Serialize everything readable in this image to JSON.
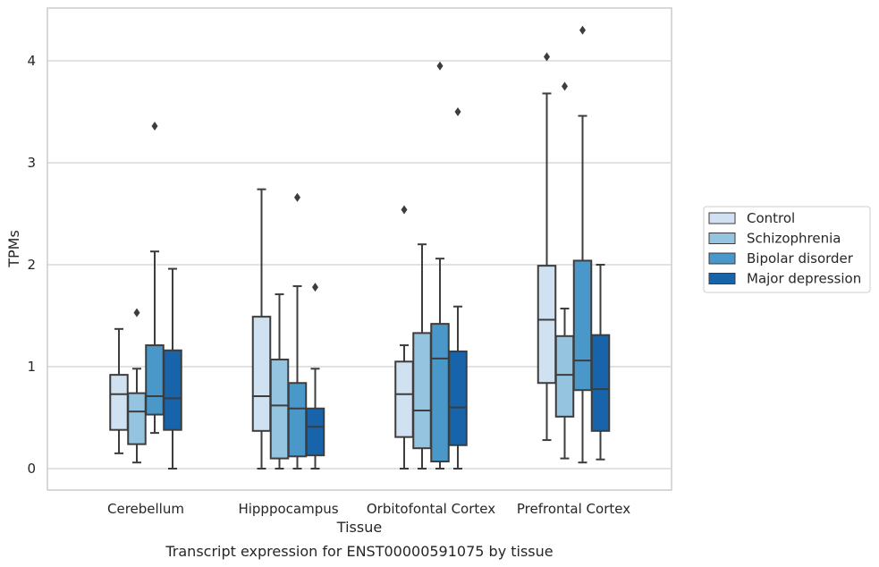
{
  "chart_data": {
    "type": "box",
    "title": "",
    "caption": "Transcript expression for ENST00000591075 by tissue",
    "xlabel": "Tissue",
    "ylabel": "TPMs",
    "ylim": [
      -0.2,
      4.52
    ],
    "yticks": [
      0,
      1,
      2,
      3,
      4
    ],
    "grid": "horizontal",
    "legend_position": "right",
    "categories": [
      "Cerebellum",
      "Hipppocampus",
      "Orbitofontal Cortex",
      "Prefrontal Cortex"
    ],
    "series": [
      {
        "name": "Control",
        "color": "#d0e1f2",
        "boxes": [
          {
            "whislo": 0.15,
            "q1": 0.38,
            "med": 0.73,
            "q3": 0.92,
            "whishi": 1.37,
            "fliers": []
          },
          {
            "whislo": 0.0,
            "q1": 0.37,
            "med": 0.71,
            "q3": 1.49,
            "whishi": 2.74,
            "fliers": []
          },
          {
            "whislo": 0.0,
            "q1": 0.31,
            "med": 0.73,
            "q3": 1.05,
            "whishi": 1.21,
            "fliers": [
              2.54
            ]
          },
          {
            "whislo": 0.28,
            "q1": 0.84,
            "med": 1.46,
            "q3": 1.99,
            "whishi": 3.68,
            "fliers": [
              4.04
            ]
          }
        ]
      },
      {
        "name": "Schizophrenia",
        "color": "#94c4df",
        "boxes": [
          {
            "whislo": 0.06,
            "q1": 0.24,
            "med": 0.56,
            "q3": 0.74,
            "whishi": 0.98,
            "fliers": [
              1.53
            ]
          },
          {
            "whislo": 0.0,
            "q1": 0.1,
            "med": 0.62,
            "q3": 1.07,
            "whishi": 1.71,
            "fliers": []
          },
          {
            "whislo": 0.0,
            "q1": 0.2,
            "med": 0.57,
            "q3": 1.33,
            "whishi": 2.2,
            "fliers": []
          },
          {
            "whislo": 0.1,
            "q1": 0.51,
            "med": 0.92,
            "q3": 1.3,
            "whishi": 1.57,
            "fliers": [
              3.75
            ]
          }
        ]
      },
      {
        "name": "Bipolar disorder",
        "color": "#4a98c9",
        "boxes": [
          {
            "whislo": 0.35,
            "q1": 0.53,
            "med": 0.71,
            "q3": 1.21,
            "whishi": 2.13,
            "fliers": [
              3.36
            ]
          },
          {
            "whislo": 0.0,
            "q1": 0.12,
            "med": 0.59,
            "q3": 0.84,
            "whishi": 1.79,
            "fliers": [
              2.66
            ]
          },
          {
            "whislo": 0.0,
            "q1": 0.07,
            "med": 1.08,
            "q3": 1.42,
            "whishi": 2.06,
            "fliers": [
              3.95
            ]
          },
          {
            "whislo": 0.06,
            "q1": 0.77,
            "med": 1.06,
            "q3": 2.04,
            "whishi": 3.46,
            "fliers": [
              4.3
            ]
          }
        ]
      },
      {
        "name": "Major depression",
        "color": "#1764ab",
        "boxes": [
          {
            "whislo": 0.0,
            "q1": 0.38,
            "med": 0.69,
            "q3": 1.16,
            "whishi": 1.96,
            "fliers": []
          },
          {
            "whislo": 0.0,
            "q1": 0.13,
            "med": 0.41,
            "q3": 0.59,
            "whishi": 0.98,
            "fliers": [
              1.78
            ]
          },
          {
            "whislo": 0.0,
            "q1": 0.23,
            "med": 0.6,
            "q3": 1.15,
            "whishi": 1.59,
            "fliers": [
              3.5
            ]
          },
          {
            "whislo": 0.09,
            "q1": 0.37,
            "med": 0.78,
            "q3": 1.31,
            "whishi": 2.0,
            "fliers": []
          }
        ]
      }
    ]
  }
}
